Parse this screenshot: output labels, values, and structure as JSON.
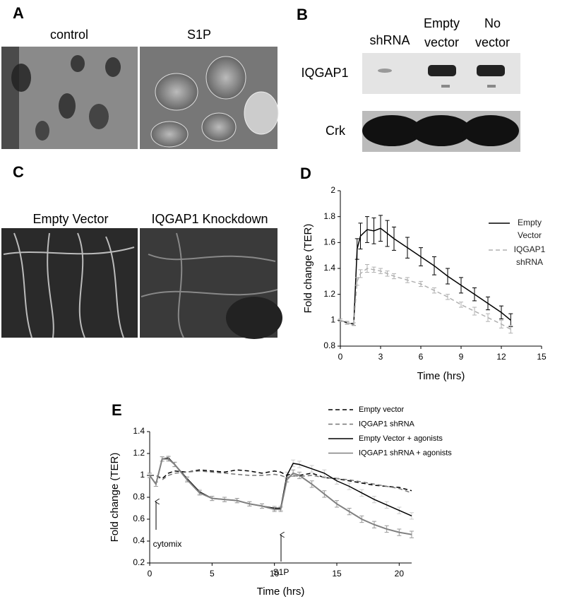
{
  "panels": {
    "A": {
      "label": "A",
      "images": [
        "control",
        "S1P"
      ]
    },
    "B": {
      "label": "B",
      "columns": [
        "shRNA",
        "Empty vector",
        "No vector"
      ],
      "rows": [
        "IQGAP1",
        "Crk"
      ]
    },
    "C": {
      "label": "C",
      "images": [
        "Empty Vector",
        "IQGAP1 Knockdown"
      ]
    }
  },
  "chart_data": [
    {
      "label": "D",
      "type": "line",
      "xlabel": "Time (hrs)",
      "ylabel": "Fold change (TER)",
      "xlim": [
        0,
        15
      ],
      "xticks": [
        0,
        3,
        6,
        9,
        12,
        15
      ],
      "ylim": [
        0.8,
        2
      ],
      "yticks": [
        0.8,
        1,
        1.2,
        1.4,
        1.6,
        1.8,
        2
      ],
      "x": [
        0,
        0.5,
        1,
        1.25,
        1.5,
        2,
        2.5,
        3,
        3.5,
        4,
        5,
        6,
        7,
        8,
        9,
        10,
        11,
        12,
        12.7
      ],
      "series": [
        {
          "name": "Empty Vector",
          "color": "#000000",
          "dashed": false,
          "values": [
            1.0,
            0.98,
            0.97,
            1.55,
            1.65,
            1.7,
            1.69,
            1.71,
            1.67,
            1.63,
            1.56,
            1.49,
            1.42,
            1.34,
            1.27,
            1.2,
            1.13,
            1.06,
            1.0
          ],
          "errors": [
            0.01,
            0.01,
            0.01,
            0.08,
            0.1,
            0.1,
            0.1,
            0.1,
            0.1,
            0.09,
            0.08,
            0.07,
            0.07,
            0.06,
            0.06,
            0.05,
            0.05,
            0.05,
            0.05
          ]
        },
        {
          "name": "IQGAP1 shRNA",
          "color": "#b0b0b0",
          "dashed": true,
          "values": [
            1.0,
            0.98,
            0.97,
            1.3,
            1.36,
            1.4,
            1.39,
            1.38,
            1.36,
            1.34,
            1.31,
            1.28,
            1.23,
            1.18,
            1.12,
            1.07,
            1.02,
            0.97,
            0.93
          ],
          "errors": [
            0.01,
            0.01,
            0.01,
            0.03,
            0.03,
            0.03,
            0.02,
            0.02,
            0.02,
            0.02,
            0.02,
            0.02,
            0.02,
            0.02,
            0.02,
            0.03,
            0.03,
            0.03,
            0.03
          ]
        }
      ]
    },
    {
      "label": "E",
      "type": "line",
      "xlabel": "Time (hrs)",
      "ylabel": "Fold change (TER)",
      "annotations": [
        "cytomix",
        "S1P"
      ],
      "xlim": [
        0,
        21
      ],
      "xticks": [
        0,
        5,
        10,
        15,
        20
      ],
      "ylim": [
        0.2,
        1.4
      ],
      "yticks": [
        0.2,
        0.4,
        0.6,
        0.8,
        1,
        1.2,
        1.4
      ],
      "x": [
        0,
        0.5,
        1,
        1.5,
        2,
        3,
        4,
        5,
        6,
        7,
        8,
        9,
        10,
        10.5,
        11,
        11.5,
        12,
        13,
        14,
        15,
        16,
        17,
        18,
        19,
        20,
        21
      ],
      "series": [
        {
          "name": "Empty vector",
          "color": "#000000",
          "dashed": true,
          "values": [
            1.0,
            1.0,
            0.97,
            1.02,
            1.04,
            1.03,
            1.05,
            1.04,
            1.03,
            1.05,
            1.04,
            1.02,
            1.04,
            1.03,
            1.0,
            1.02,
            1.0,
            1.02,
            0.98,
            0.97,
            0.95,
            0.93,
            0.91,
            0.9,
            0.89,
            0.86
          ]
        },
        {
          "name": "IQGAP1 shRNA",
          "color": "#777777",
          "dashed": true,
          "values": [
            1.0,
            1.0,
            0.96,
            1.0,
            1.02,
            1.03,
            1.04,
            1.03,
            1.02,
            1.01,
            1.0,
            1.0,
            1.01,
            1.0,
            0.98,
            1.0,
            0.99,
            1.0,
            0.98,
            0.97,
            0.96,
            0.94,
            0.92,
            0.9,
            0.88,
            0.84
          ]
        },
        {
          "name": "Empty Vector + agonists",
          "color": "#000000",
          "dashed": false,
          "values": [
            1.0,
            0.92,
            1.15,
            1.16,
            1.1,
            0.97,
            0.85,
            0.79,
            0.78,
            0.77,
            0.74,
            0.72,
            0.7,
            0.7,
            1.0,
            1.11,
            1.1,
            1.06,
            1.02,
            0.95,
            0.9,
            0.84,
            0.78,
            0.73,
            0.68,
            0.63
          ],
          "errors": [
            0.02,
            0.02,
            0.02,
            0.02,
            0.02,
            0.02,
            0.02,
            0.02,
            0.02,
            0.02,
            0.02,
            0.02,
            0.02,
            0.02,
            0.03,
            0.03,
            0.03,
            0.03,
            0.03,
            0.03,
            0.03,
            0.03,
            0.03,
            0.03,
            0.03,
            0.03
          ]
        },
        {
          "name": "IQGAP1 shRNA + agonists",
          "color": "#808080",
          "dashed": false,
          "values": [
            1.0,
            0.92,
            1.15,
            1.15,
            1.1,
            0.96,
            0.84,
            0.79,
            0.78,
            0.77,
            0.74,
            0.72,
            0.69,
            0.69,
            0.96,
            1.02,
            1.0,
            0.92,
            0.83,
            0.74,
            0.67,
            0.6,
            0.55,
            0.51,
            0.48,
            0.46
          ],
          "errors": [
            0.02,
            0.02,
            0.02,
            0.02,
            0.02,
            0.02,
            0.02,
            0.02,
            0.02,
            0.02,
            0.02,
            0.02,
            0.02,
            0.02,
            0.02,
            0.03,
            0.03,
            0.03,
            0.03,
            0.03,
            0.03,
            0.03,
            0.03,
            0.03,
            0.03,
            0.03
          ]
        }
      ]
    }
  ]
}
